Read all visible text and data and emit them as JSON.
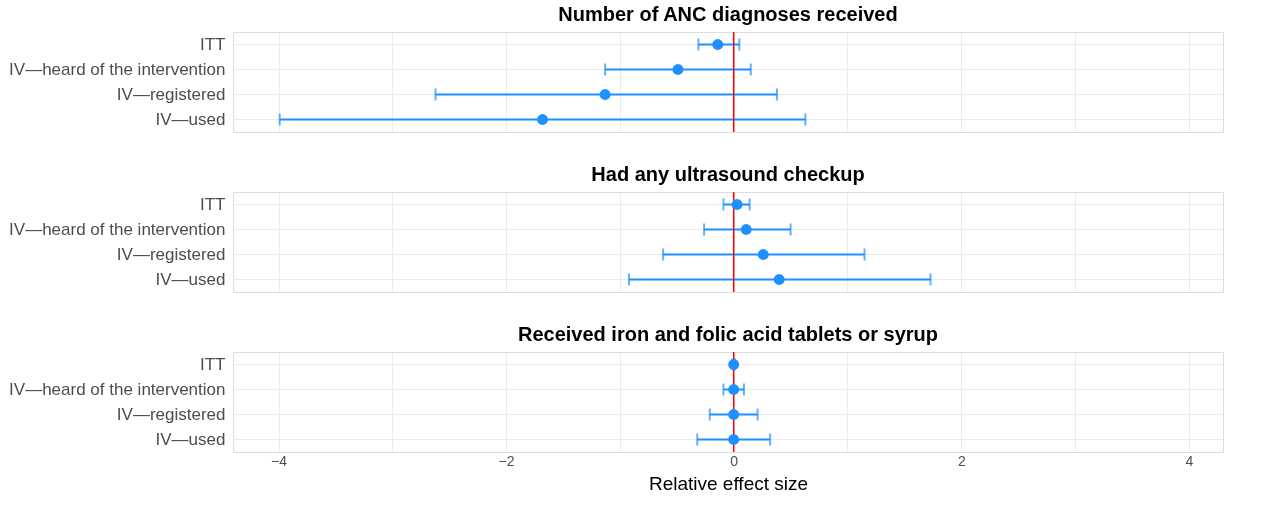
{
  "chart_data": [
    {
      "type": "scatter",
      "orientation": "horizontal",
      "title": "Number of ANC diagnoses received",
      "categories": [
        "ITT",
        "IV—heard of the intervention",
        "IV—registered",
        "IV—used"
      ],
      "series": [
        {
          "color": "#1e90ff",
          "values": [
            -0.14,
            -0.49,
            -1.13,
            -1.68
          ],
          "errors": [
            [
              -0.31,
              0.05
            ],
            [
              -1.13,
              0.15
            ],
            [
              -2.62,
              0.38
            ],
            [
              -3.99,
              0.63
            ]
          ]
        }
      ],
      "xlim": [
        -4.4,
        4.3
      ],
      "xticks": [
        -4,
        {
          "value": -3,
          "label": null
        },
        -2,
        {
          "value": -1,
          "label": null
        },
        0,
        {
          "value": 1,
          "label": null
        },
        2,
        {
          "value": 3,
          "label": null
        },
        4
      ],
      "ref_lines": [
        {
          "axis": "x",
          "value": 0,
          "color": "#ff0000"
        }
      ],
      "grid": true,
      "marker": "circle",
      "tick_labels": "y"
    },
    {
      "type": "scatter",
      "orientation": "horizontal",
      "title": "Had any ultrasound checkup",
      "categories": [
        "ITT",
        "IV—heard of the intervention",
        "IV—registered",
        "IV—used"
      ],
      "series": [
        {
          "color": "#1e90ff",
          "values": [
            0.03,
            0.11,
            0.26,
            0.4
          ],
          "errors": [
            [
              -0.09,
              0.14
            ],
            [
              -0.26,
              0.5
            ],
            [
              -0.62,
              1.15
            ],
            [
              -0.92,
              1.73
            ]
          ]
        }
      ],
      "xlim": [
        -4.4,
        4.3
      ],
      "xticks": [
        -4,
        {
          "value": -3,
          "label": null
        },
        -2,
        {
          "value": -1,
          "label": null
        },
        0,
        {
          "value": 1,
          "label": null
        },
        2,
        {
          "value": 3,
          "label": null
        },
        4
      ],
      "ref_lines": [
        {
          "axis": "x",
          "value": 0,
          "color": "#ff0000"
        }
      ],
      "grid": true,
      "marker": "circle",
      "tick_labels": "y"
    },
    {
      "type": "scatter",
      "orientation": "horizontal",
      "title": "Received iron and folic acid tablets or syrup",
      "xlabel": "Relative effect size",
      "categories": [
        "ITT",
        "IV—heard of the intervention",
        "IV—registered",
        "IV—used"
      ],
      "series": [
        {
          "color": "#1e90ff",
          "values": [
            0,
            0,
            0,
            0
          ],
          "errors": [
            [
              -0.01,
              0.01
            ],
            [
              -0.09,
              0.09
            ],
            [
              -0.21,
              0.21
            ],
            [
              -0.32,
              0.32
            ]
          ]
        }
      ],
      "xlim": [
        -4.4,
        4.3
      ],
      "xticks": [
        -4,
        {
          "value": -3,
          "label": null
        },
        -2,
        {
          "value": -1,
          "label": null
        },
        0,
        {
          "value": 1,
          "label": null
        },
        2,
        {
          "value": 3,
          "label": null
        },
        4
      ],
      "ref_lines": [
        {
          "axis": "x",
          "value": 0,
          "color": "#ff0000"
        }
      ],
      "grid": true,
      "marker": "circle"
    }
  ]
}
